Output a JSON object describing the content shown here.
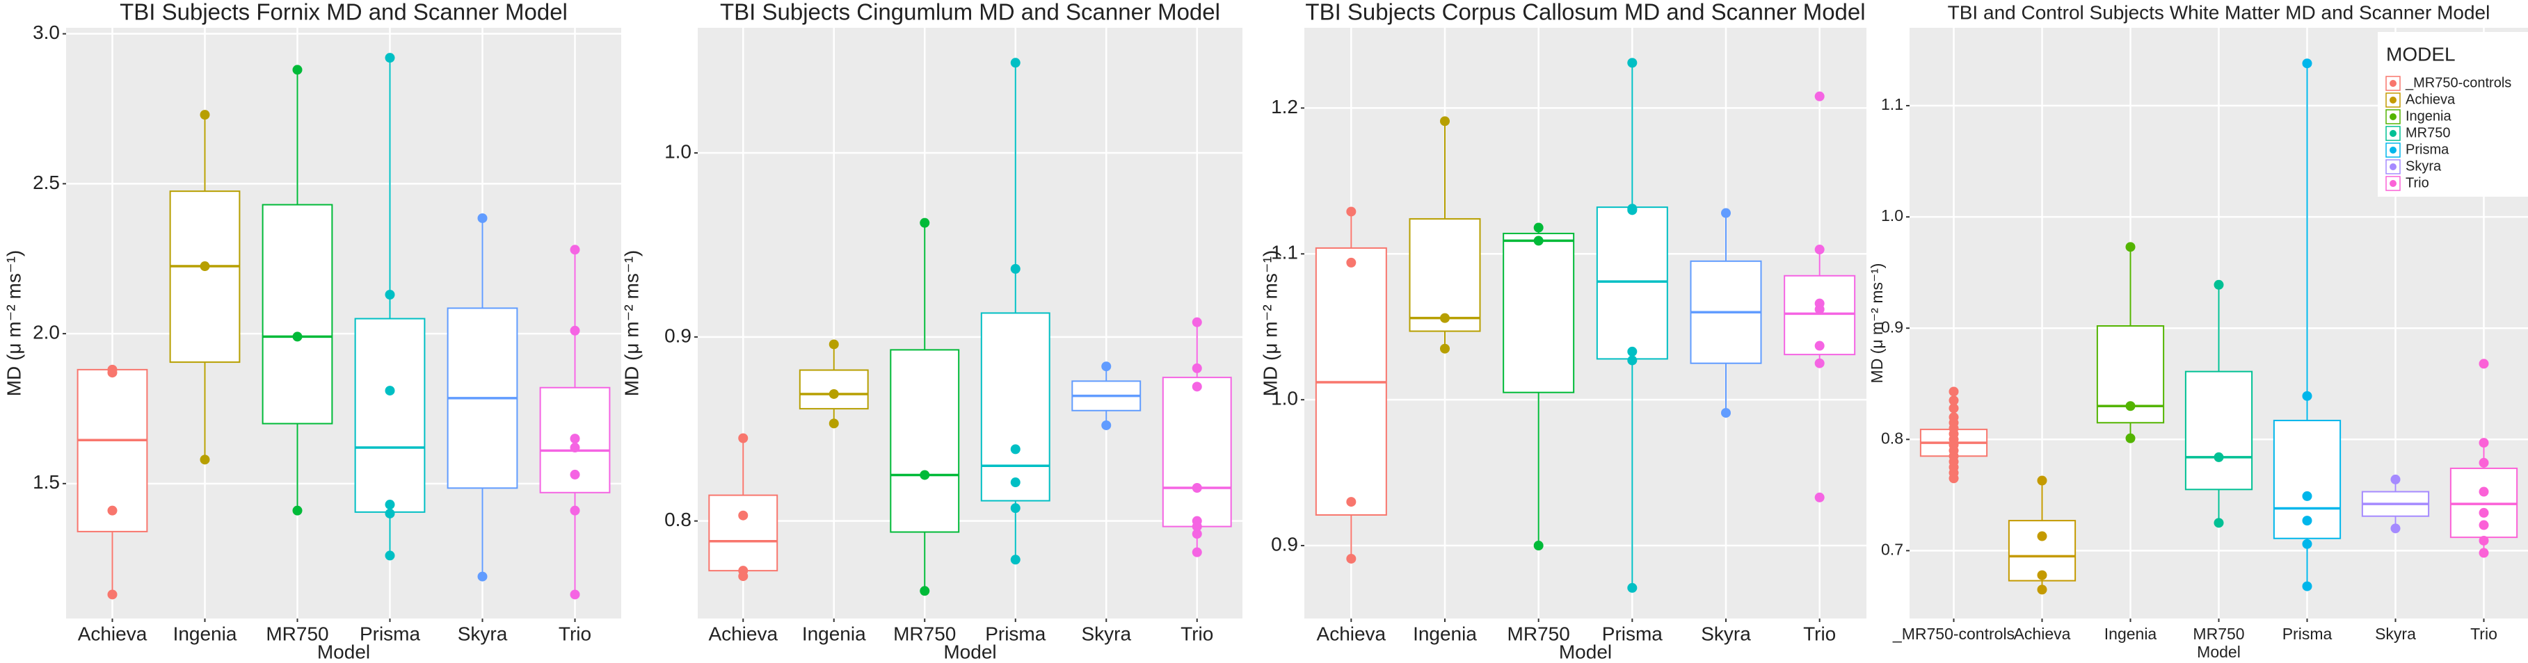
{
  "chart_data": [
    {
      "type": "box",
      "title": "TBI Subjects Fornix MD and Scanner Model",
      "xlabel": "Model",
      "ylabel": "MD (μ m⁻² ms⁻¹)",
      "categories": [
        "Achieva",
        "Ingenia",
        "MR750",
        "Prisma",
        "Skyra",
        "Trio"
      ],
      "colors": [
        "#F8766D",
        "#B79F00",
        "#00BA38",
        "#00BFC4",
        "#619CFF",
        "#F564E3"
      ],
      "ylim": [
        1.05,
        3.02
      ],
      "yticks": [
        1.5,
        {
          "value": 2,
          "label": "2.0"
        },
        2.5,
        {
          "value": 3,
          "label": "3.0"
        }
      ],
      "grid": true,
      "boxes": [
        {
          "low": 1.13,
          "q1": 1.34,
          "median": 1.645,
          "q3": 1.88,
          "high": 1.89,
          "points": [
            1.13,
            1.41,
            1.87,
            1.88
          ]
        },
        {
          "low": 1.58,
          "q1": 1.905,
          "median": 2.225,
          "q3": 2.475,
          "high": 2.73,
          "points": [
            1.58,
            2.225,
            2.73
          ]
        },
        {
          "low": 1.41,
          "q1": 1.7,
          "median": 1.99,
          "q3": 2.43,
          "high": 2.88,
          "points": [
            1.41,
            1.99,
            2.88
          ]
        },
        {
          "low": 1.26,
          "q1": 1.405,
          "median": 1.62,
          "q3": 2.05,
          "high": 2.92,
          "points": [
            1.26,
            1.4,
            1.43,
            1.81,
            2.13,
            2.92
          ]
        },
        {
          "low": 1.19,
          "q1": 1.485,
          "median": 1.785,
          "q3": 2.085,
          "high": 2.385,
          "points": [
            1.19,
            2.385
          ]
        },
        {
          "low": 1.13,
          "q1": 1.47,
          "median": 1.61,
          "q3": 1.82,
          "high": 2.28,
          "points": [
            1.13,
            1.41,
            1.53,
            1.62,
            1.65,
            2.01,
            2.28
          ]
        }
      ]
    },
    {
      "type": "box",
      "title": "TBI Subjects Cingumlum MD and Scanner Model",
      "xlabel": "Model",
      "ylabel": "MD (μ m⁻² ms⁻¹)",
      "categories": [
        "Achieva",
        "Ingenia",
        "MR750",
        "Prisma",
        "Skyra",
        "Trio"
      ],
      "colors": [
        "#F8766D",
        "#B79F00",
        "#00BA38",
        "#00BFC4",
        "#619CFF",
        "#F564E3"
      ],
      "ylim": [
        0.747,
        1.068
      ],
      "yticks": [
        0.8,
        0.9,
        {
          "value": 1,
          "label": "1.0"
        }
      ],
      "grid": true,
      "boxes": [
        {
          "low": 0.77,
          "q1": 0.773,
          "median": 0.789,
          "q3": 0.814,
          "high": 0.845,
          "points": [
            0.77,
            0.773,
            0.803,
            0.845
          ]
        },
        {
          "low": 0.853,
          "q1": 0.861,
          "median": 0.869,
          "q3": 0.882,
          "high": 0.896,
          "points": [
            0.853,
            0.869,
            0.896
          ]
        },
        {
          "low": 0.762,
          "q1": 0.794,
          "median": 0.825,
          "q3": 0.893,
          "high": 0.962,
          "points": [
            0.762,
            0.825,
            0.962
          ]
        },
        {
          "low": 0.779,
          "q1": 0.811,
          "median": 0.83,
          "q3": 0.913,
          "high": 1.049,
          "points": [
            0.779,
            0.807,
            0.821,
            0.839,
            0.937,
            1.049
          ]
        },
        {
          "low": 0.852,
          "q1": 0.86,
          "median": 0.868,
          "q3": 0.876,
          "high": 0.884,
          "points": [
            0.852,
            0.884
          ]
        },
        {
          "low": 0.783,
          "q1": 0.797,
          "median": 0.818,
          "q3": 0.878,
          "high": 0.908,
          "points": [
            0.783,
            0.793,
            0.797,
            0.8,
            0.818,
            0.873,
            0.883,
            0.908
          ]
        }
      ]
    },
    {
      "type": "box",
      "title": "TBI Subjects Corpus Callosum MD and Scanner Model",
      "xlabel": "Model",
      "ylabel": "MD (μ m⁻² ms⁻¹)",
      "categories": [
        "Achieva",
        "Ingenia",
        "MR750",
        "Prisma",
        "Skyra",
        "Trio"
      ],
      "colors": [
        "#F8766D",
        "#B79F00",
        "#00BA38",
        "#00BFC4",
        "#619CFF",
        "#F564E3"
      ],
      "ylim": [
        0.85,
        1.255
      ],
      "yticks": [
        0.9,
        {
          "value": 1,
          "label": "1.0"
        },
        1.1,
        1.2
      ],
      "grid": true,
      "boxes": [
        {
          "low": 0.891,
          "q1": 0.921,
          "median": 1.012,
          "q3": 1.104,
          "high": 1.129,
          "points": [
            0.891,
            0.93,
            1.094,
            1.129
          ]
        },
        {
          "low": 1.035,
          "q1": 1.047,
          "median": 1.056,
          "q3": 1.124,
          "high": 1.191,
          "points": [
            1.035,
            1.056,
            1.191
          ]
        },
        {
          "low": 0.9,
          "q1": 1.005,
          "median": 1.109,
          "q3": 1.114,
          "high": 1.118,
          "points": [
            0.9,
            1.109,
            1.118
          ]
        },
        {
          "low": 0.871,
          "q1": 1.028,
          "median": 1.081,
          "q3": 1.132,
          "high": 1.231,
          "points": [
            0.871,
            1.027,
            1.033,
            1.13,
            1.131,
            1.231
          ]
        },
        {
          "low": 0.991,
          "q1": 1.025,
          "median": 1.06,
          "q3": 1.095,
          "high": 1.128,
          "points": [
            0.991,
            1.128
          ]
        },
        {
          "low": 1.025,
          "q1": 1.031,
          "median": 1.059,
          "q3": 1.085,
          "high": 1.103,
          "points": [
            0.933,
            1.025,
            1.037,
            1.062,
            1.066,
            1.103,
            1.208
          ]
        }
      ]
    },
    {
      "type": "box",
      "title": "TBI and Control Subjects White Matter MD and Scanner Model",
      "xlabel": "Model",
      "ylabel": "MD (μ m⁻² ms⁻¹)",
      "categories": [
        "_MR750-controls",
        "Achieva",
        "Ingenia",
        "MR750",
        "Prisma",
        "Skyra",
        "Trio"
      ],
      "colors": [
        "#F8766D",
        "#C49A00",
        "#53B400",
        "#00C094",
        "#00B6EB",
        "#A58AFF",
        "#FB61D7"
      ],
      "ylim": [
        0.639,
        1.17
      ],
      "yticks": [
        0.7,
        0.8,
        0.9,
        {
          "value": 1,
          "label": "1.0"
        },
        1.1
      ],
      "grid": true,
      "legend": {
        "title": "MODEL",
        "position": "top-right"
      },
      "boxes": [
        {
          "low": 0.765,
          "q1": 0.785,
          "median": 0.797,
          "q3": 0.809,
          "high": 0.843,
          "points": [
            0.765,
            0.77,
            0.775,
            0.78,
            0.785,
            0.79,
            0.795,
            0.8,
            0.805,
            0.81,
            0.815,
            0.82,
            0.828,
            0.835,
            0.843
          ]
        },
        {
          "low": 0.665,
          "q1": 0.673,
          "median": 0.695,
          "q3": 0.727,
          "high": 0.763,
          "points": [
            0.665,
            0.678,
            0.713,
            0.763
          ]
        },
        {
          "low": 0.801,
          "q1": 0.815,
          "median": 0.83,
          "q3": 0.902,
          "high": 0.973,
          "points": [
            0.801,
            0.83,
            0.973
          ]
        },
        {
          "low": 0.725,
          "q1": 0.755,
          "median": 0.784,
          "q3": 0.861,
          "high": 0.939,
          "points": [
            0.725,
            0.784,
            0.939
          ]
        },
        {
          "low": 0.668,
          "q1": 0.711,
          "median": 0.738,
          "q3": 0.817,
          "high": 1.138,
          "points": [
            0.668,
            0.706,
            0.727,
            0.749,
            0.839,
            1.138
          ]
        },
        {
          "low": 0.72,
          "q1": 0.731,
          "median": 0.742,
          "q3": 0.753,
          "high": 0.764,
          "points": [
            0.72,
            0.764
          ]
        },
        {
          "low": 0.698,
          "q1": 0.712,
          "median": 0.742,
          "q3": 0.774,
          "high": 0.797,
          "points": [
            0.698,
            0.709,
            0.723,
            0.734,
            0.753,
            0.779,
            0.797,
            0.868
          ]
        }
      ]
    }
  ]
}
